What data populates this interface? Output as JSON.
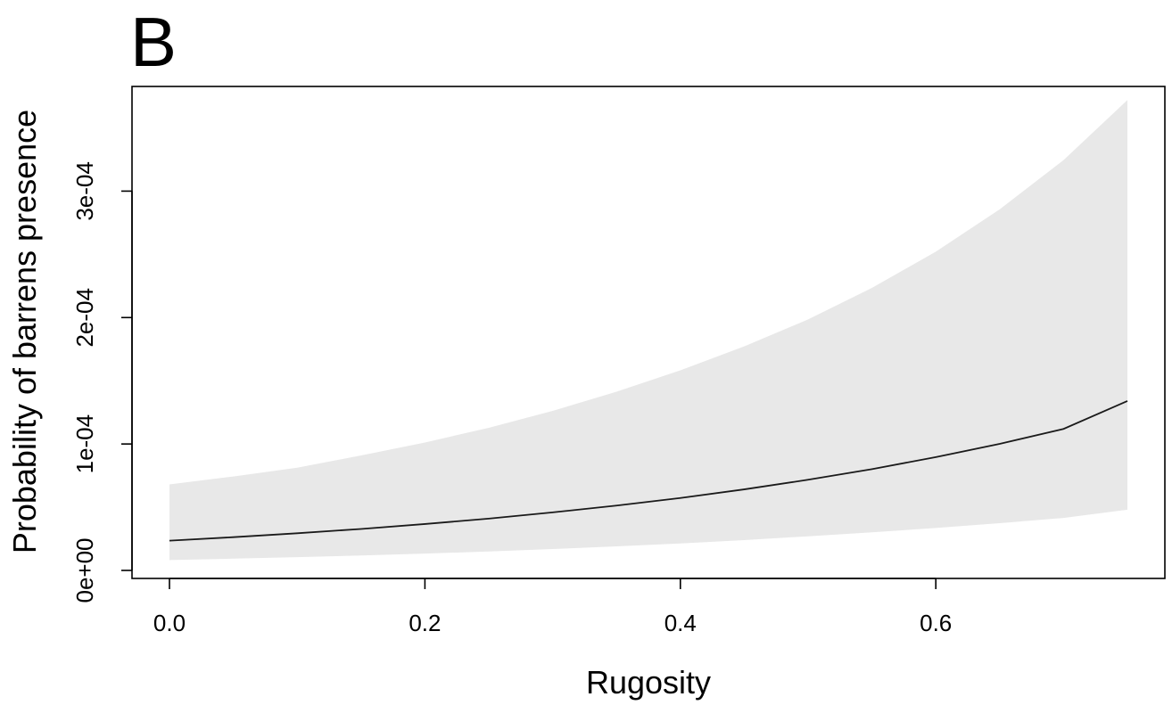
{
  "chart_data": {
    "type": "line",
    "panel_label": "B",
    "title": "",
    "xlabel": "Rugosity",
    "ylabel": "Probability of barrens presence",
    "xlim": [
      0.0,
      0.75
    ],
    "ylim": [
      0.0,
      0.00035
    ],
    "x_ticks": [
      0.0,
      0.2,
      0.4,
      0.6
    ],
    "x_tick_labels": [
      "0.0",
      "0.2",
      "0.4",
      "0.6"
    ],
    "y_ticks": [
      0.0,
      0.0001,
      0.0002,
      0.0003
    ],
    "y_tick_labels": [
      "0e+00",
      "1e-04",
      "2e-04",
      "3e-04"
    ],
    "grid": false,
    "legend": "none",
    "series": [
      {
        "x": [
          0.0,
          0.05,
          0.1,
          0.15,
          0.2,
          0.25,
          0.3,
          0.35,
          0.4,
          0.45,
          0.5,
          0.55,
          0.6,
          0.65,
          0.7,
          0.75
        ],
        "y": [
          2.35e-05,
          2.63e-05,
          2.94e-05,
          3.28e-05,
          3.67e-05,
          4.1e-05,
          4.59e-05,
          5.13e-05,
          5.73e-05,
          6.41e-05,
          7.17e-05,
          8.01e-05,
          8.96e-05,
          0.0001001,
          0.0001119,
          0.000134
        ],
        "ci_lower": [
          8.2e-06,
          9.3e-06,
          1.05e-05,
          1.18e-05,
          1.33e-05,
          1.5e-05,
          1.69e-05,
          1.9e-05,
          2.13e-05,
          2.4e-05,
          2.7e-05,
          3.01e-05,
          3.36e-05,
          3.74e-05,
          4.15e-05,
          4.8e-05
        ],
        "ci_upper": [
          6.8e-05,
          7.43e-05,
          8.12e-05,
          9.09e-05,
          0.0001012,
          0.0001128,
          0.0001262,
          0.0001413,
          0.0001583,
          0.0001772,
          0.0001985,
          0.0002235,
          0.0002521,
          0.0002856,
          0.0003245,
          0.000372
        ]
      }
    ],
    "colors": {
      "line": "#1a1a1a",
      "ribbon": "#e8e8e8",
      "axis": "#000000"
    }
  }
}
